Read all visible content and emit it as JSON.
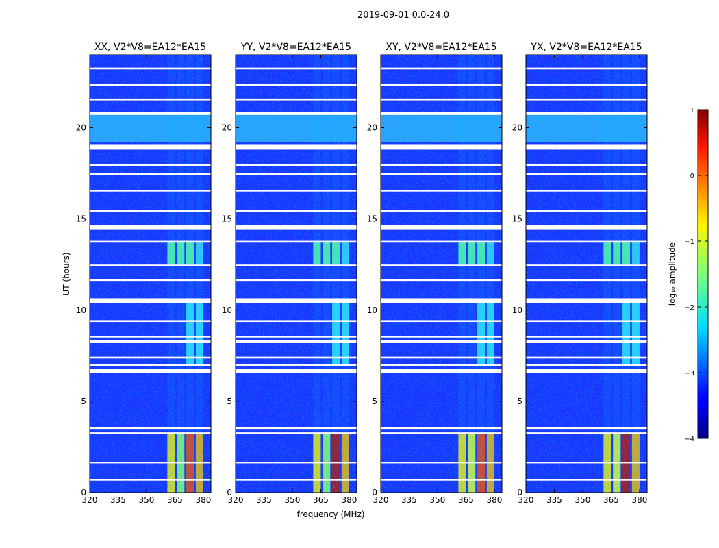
{
  "figure": {
    "suptitle": "2019-09-01 0.0-24.0",
    "shared_xlabel": "frequency (MHz)",
    "shared_ylabel": "UT (hours)"
  },
  "chart_data": {
    "type": "heatmap",
    "title": "2019-09-01 0.0-24.0",
    "xlabel": "frequency (MHz)",
    "ylabel": "UT (hours)",
    "xlim": [
      320,
      384
    ],
    "ylim": [
      0,
      24
    ],
    "xticks": [
      "320",
      "335",
      "350",
      "365",
      "380"
    ],
    "yticks": [
      "0",
      "5",
      "10",
      "15",
      "20"
    ],
    "panels": [
      {
        "title": "XX, V2*V8=EA12*EA15",
        "polarization": "XX"
      },
      {
        "title": "YY, V2*V8=EA12*EA15",
        "polarization": "YY"
      },
      {
        "title": "XY, V2*V8=EA12*EA15",
        "polarization": "XY"
      },
      {
        "title": "YX, V2*V8=EA12*EA15",
        "polarization": "YX"
      }
    ],
    "rfi_channels_mhz": [
      {
        "from": 361,
        "to": 365
      },
      {
        "from": 366,
        "to": 370
      },
      {
        "from": 371,
        "to": 375
      },
      {
        "from": 376,
        "to": 380
      }
    ],
    "flagged_hours": [
      {
        "from": 0.65,
        "to": 0.72
      },
      {
        "from": 1.6,
        "to": 1.66
      },
      {
        "from": 3.2,
        "to": 3.3
      },
      {
        "from": 3.45,
        "to": 3.6
      },
      {
        "from": 6.55,
        "to": 6.78
      },
      {
        "from": 6.95,
        "to": 7.05
      },
      {
        "from": 7.35,
        "to": 7.45
      },
      {
        "from": 8.2,
        "to": 8.35
      },
      {
        "from": 8.5,
        "to": 8.6
      },
      {
        "from": 9.35,
        "to": 9.45
      },
      {
        "from": 10.4,
        "to": 10.65
      },
      {
        "from": 11.6,
        "to": 11.7
      },
      {
        "from": 12.4,
        "to": 12.5
      },
      {
        "from": 13.7,
        "to": 13.8
      },
      {
        "from": 14.4,
        "to": 14.65
      },
      {
        "from": 15.4,
        "to": 15.5
      },
      {
        "from": 16.5,
        "to": 16.6
      },
      {
        "from": 17.4,
        "to": 17.5
      },
      {
        "from": 17.9,
        "to": 18.0
      },
      {
        "from": 18.8,
        "to": 19.1
      },
      {
        "from": 20.7,
        "to": 20.85
      },
      {
        "from": 21.5,
        "to": 21.6
      },
      {
        "from": 22.3,
        "to": 22.4
      },
      {
        "from": 23.2,
        "to": 23.3
      }
    ],
    "colorbar": {
      "label": "log₁₀ amplitude",
      "range": [
        -4,
        1
      ],
      "ticks": [
        "1",
        "0",
        "−1",
        "−2",
        "−3",
        "−4"
      ],
      "colormap": "jet"
    }
  }
}
